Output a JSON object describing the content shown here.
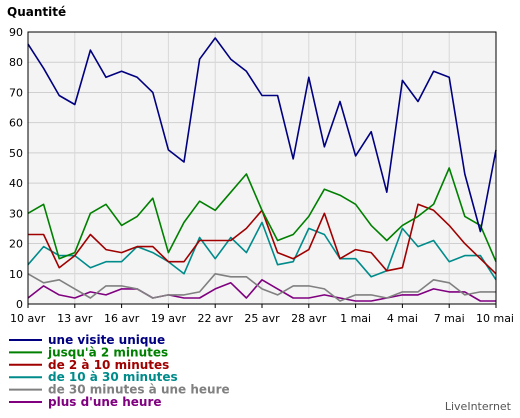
{
  "brand": "LiveInternet",
  "chart_data": {
    "type": "line",
    "title": "",
    "ylabel": "Quantité",
    "xlabel": "",
    "ylim": [
      0,
      90
    ],
    "yticks": [
      0,
      10,
      20,
      30,
      40,
      50,
      60,
      70,
      80,
      90
    ],
    "grid": true,
    "legend_position": "bottom-left",
    "x_tick_labels": [
      "10 avr",
      "13 avr",
      "16 avr",
      "19 avr",
      "22 avr",
      "25 avr",
      "28 avr",
      "1 mai",
      "4 mai",
      "7 mai",
      "10 mai"
    ],
    "x_tick_every": 3,
    "x": [
      "10 avr",
      "11 avr",
      "12 avr",
      "13 avr",
      "14 avr",
      "15 avr",
      "16 avr",
      "17 avr",
      "18 avr",
      "19 avr",
      "20 avr",
      "21 avr",
      "22 avr",
      "23 avr",
      "24 avr",
      "25 avr",
      "26 avr",
      "27 avr",
      "28 avr",
      "29 avr",
      "30 avr",
      "1 mai",
      "2 mai",
      "3 mai",
      "4 mai",
      "5 mai",
      "6 mai",
      "7 mai",
      "8 mai",
      "9 mai",
      "10 mai"
    ],
    "series": [
      {
        "name": "une visite unique",
        "color": "#000080",
        "values": [
          86,
          78,
          69,
          66,
          84,
          75,
          77,
          75,
          70,
          51,
          47,
          81,
          88,
          81,
          77,
          69,
          69,
          48,
          75,
          52,
          67,
          49,
          57,
          37,
          74,
          67,
          77,
          75,
          43,
          24,
          51
        ]
      },
      {
        "name": "jusqu'à 2 minutes",
        "color": "#008000",
        "values": [
          30,
          33,
          15,
          17,
          30,
          33,
          26,
          29,
          35,
          17,
          27,
          34,
          31,
          37,
          43,
          31,
          21,
          23,
          29,
          38,
          36,
          33,
          26,
          21,
          26,
          29,
          33,
          45,
          29,
          26,
          14
        ]
      },
      {
        "name": "de 2 à 10 minutes",
        "color": "#a00000",
        "values": [
          23,
          23,
          12,
          16,
          23,
          18,
          17,
          19,
          19,
          14,
          14,
          21,
          21,
          21,
          25,
          31,
          17,
          15,
          18,
          30,
          15,
          18,
          17,
          11,
          12,
          33,
          31,
          26,
          20,
          15,
          10
        ]
      },
      {
        "name": "de 10 à 30 minutes",
        "color": "#008b8b",
        "values": [
          13,
          19,
          16,
          16,
          12,
          14,
          14,
          19,
          17,
          14,
          10,
          22,
          15,
          22,
          17,
          27,
          13,
          14,
          25,
          23,
          15,
          15,
          9,
          11,
          25,
          19,
          21,
          14,
          16,
          16,
          8
        ]
      },
      {
        "name": "de 30 minutes à une heure",
        "color": "#808080",
        "values": [
          10,
          7,
          8,
          5,
          2,
          6,
          6,
          5,
          2,
          3,
          3,
          4,
          10,
          9,
          9,
          5,
          3,
          6,
          6,
          5,
          1,
          3,
          3,
          2,
          4,
          4,
          8,
          7,
          3,
          4,
          4
        ]
      },
      {
        "name": "plus d'une heure",
        "color": "#800080",
        "values": [
          2,
          6,
          3,
          2,
          4,
          3,
          5,
          5,
          2,
          3,
          2,
          2,
          5,
          7,
          2,
          8,
          5,
          2,
          2,
          3,
          2,
          1,
          1,
          2,
          3,
          3,
          5,
          4,
          4,
          1,
          1
        ]
      }
    ]
  }
}
